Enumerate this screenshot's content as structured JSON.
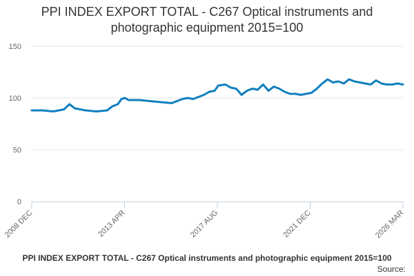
{
  "chart_data": {
    "type": "line",
    "title": "PPI INDEX EXPORT TOTAL - C267 Optical instruments and photographic equipment 2015=100",
    "xlabel": "",
    "ylabel": "",
    "ylim": [
      0,
      150
    ],
    "yticks": [
      "0",
      "50",
      "100",
      "150"
    ],
    "xticks": [
      "2008 DEC",
      "2013 APR",
      "2017 AUG",
      "2021 DEC",
      "2026 MAR"
    ],
    "grid": true,
    "legend": "none",
    "line_color": "#0f7fbf",
    "x": [
      "2008-12",
      "2009-06",
      "2009-12",
      "2010-06",
      "2010-09",
      "2010-12",
      "2011-06",
      "2011-12",
      "2012-06",
      "2012-09",
      "2012-12",
      "2013-02",
      "2013-04",
      "2013-06",
      "2013-12",
      "2014-06",
      "2014-12",
      "2015-06",
      "2015-12",
      "2016-03",
      "2016-06",
      "2016-12",
      "2017-03",
      "2017-06",
      "2017-08",
      "2017-12",
      "2018-03",
      "2018-06",
      "2018-09",
      "2018-12",
      "2019-03",
      "2019-06",
      "2019-09",
      "2019-12",
      "2020-03",
      "2020-06",
      "2020-09",
      "2020-12",
      "2021-03",
      "2021-06",
      "2021-12",
      "2022-03",
      "2022-06",
      "2022-09",
      "2022-12",
      "2023-03",
      "2023-06",
      "2023-09",
      "2023-12",
      "2024-03",
      "2024-06",
      "2024-09",
      "2024-12",
      "2025-03",
      "2025-06",
      "2025-09",
      "2025-12",
      "2026-03"
    ],
    "values": [
      88,
      88,
      87,
      89,
      94,
      90,
      88,
      87,
      88,
      92,
      94,
      99,
      100,
      98,
      98,
      97,
      96,
      95,
      99,
      100,
      99,
      103,
      106,
      107,
      112,
      113,
      110,
      109,
      103,
      107,
      109,
      108,
      113,
      107,
      111,
      109,
      106,
      104,
      104,
      103,
      105,
      109,
      114,
      118,
      115,
      116,
      114,
      118,
      116,
      115,
      114,
      113,
      117,
      114,
      113,
      113,
      114,
      113
    ]
  },
  "footer": {
    "caption": "PPI INDEX EXPORT TOTAL - C267 Optical instruments and photographic equipment 2015=100",
    "source_label": "Source:"
  }
}
